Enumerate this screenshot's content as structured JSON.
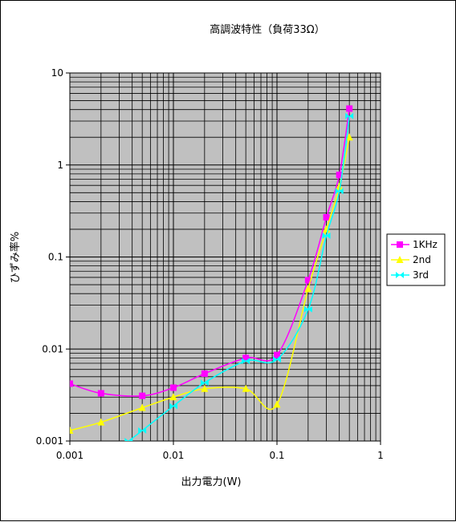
{
  "chart_data": {
    "type": "line",
    "title": "高調波特性（負荷33Ω）",
    "xlabel": "出力電力(W)",
    "ylabel": "ひずみ率%",
    "xscale": "log",
    "yscale": "log",
    "xlim": [
      0.001,
      1
    ],
    "ylim": [
      0.001,
      10
    ],
    "x_tick_labels": [
      "0.001",
      "0.01",
      "0.1",
      "1"
    ],
    "y_tick_labels": [
      "0.001",
      "0.01",
      "0.1",
      "1",
      "10"
    ],
    "grid": true,
    "plot_background": "#c0c0c0",
    "legend_position": "right",
    "series": [
      {
        "name": "1KHz",
        "color": "#ff00ff",
        "marker": "square",
        "x": [
          0.001,
          0.002,
          0.005,
          0.01,
          0.02,
          0.05,
          0.1,
          0.2,
          0.3,
          0.4,
          0.5
        ],
        "y": [
          0.0042,
          0.0033,
          0.0031,
          0.0038,
          0.0054,
          0.008,
          0.0086,
          0.056,
          0.27,
          0.78,
          4.1
        ]
      },
      {
        "name": "2nd",
        "color": "#ffff00",
        "marker": "triangle",
        "x": [
          0.001,
          0.002,
          0.005,
          0.01,
          0.02,
          0.05,
          0.1,
          0.2,
          0.3,
          0.4,
          0.5
        ],
        "y": [
          0.0013,
          0.0016,
          0.0023,
          0.003,
          0.0037,
          0.0037,
          0.0025,
          0.045,
          0.2,
          0.58,
          2.0
        ]
      },
      {
        "name": "3rd",
        "color": "#00ffff",
        "marker": "bowtie",
        "x": [
          0.0037,
          0.005,
          0.01,
          0.02,
          0.05,
          0.1,
          0.2,
          0.3,
          0.4,
          0.5
        ],
        "y": [
          0.001,
          0.0013,
          0.0024,
          0.0043,
          0.0074,
          0.0077,
          0.027,
          0.17,
          0.52,
          3.4
        ]
      }
    ]
  }
}
